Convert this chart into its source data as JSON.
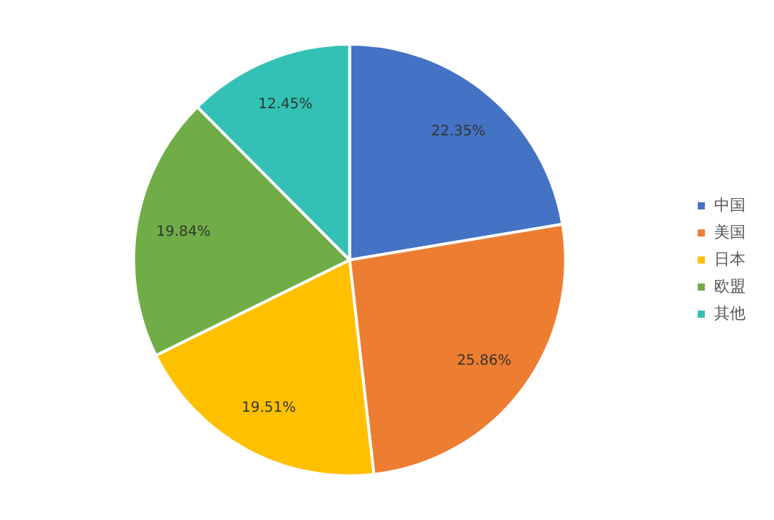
{
  "chart_data": {
    "type": "pie",
    "categories": [
      "中国",
      "美国",
      "日本",
      "欧盟",
      "其他"
    ],
    "values": [
      22.35,
      25.86,
      19.51,
      19.84,
      12.45
    ],
    "colors": [
      "#4472c4",
      "#ed7d31",
      "#ffc000",
      "#70ad47",
      "#33c1b5"
    ],
    "value_labels": [
      "22.35%",
      "25.86%",
      "19.51%",
      "19.84%",
      "12.45%"
    ],
    "legend": "right"
  }
}
